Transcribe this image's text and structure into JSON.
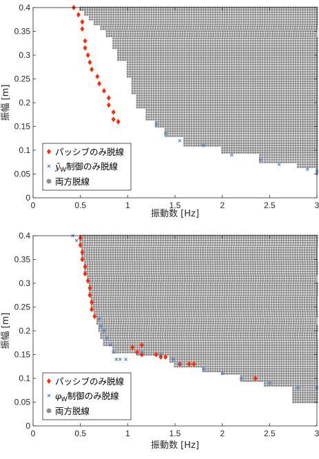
{
  "chart_data": [
    {
      "type": "scatter",
      "xlabel": "振動数 [Hz]",
      "ylabel": "振幅 [m]",
      "xlim": [
        0,
        3
      ],
      "ylim": [
        0,
        0.4
      ],
      "xticks": [
        "0",
        "0.5",
        "1",
        "1.5",
        "2",
        "2.5",
        "3"
      ],
      "yticks": [
        "0",
        "0.05",
        "0.1",
        "0.15",
        "0.2",
        "0.25",
        "0.3",
        "0.35",
        "0.4"
      ],
      "grid": false,
      "legend_position": "bottom-left",
      "legend": [
        "パッシブのみ脱線",
        "ỹ_W制御のみ脱線",
        "両方脱線"
      ],
      "markers": [
        "diamond",
        "x",
        "circle"
      ],
      "colors": [
        "#ff2a00",
        "#3b72d9",
        "#8c8c8c"
      ],
      "series": [
        {
          "name": "パッシブのみ脱線",
          "points": [
            [
              0.43,
              0.4
            ],
            [
              0.48,
              0.385
            ],
            [
              0.52,
              0.37
            ],
            [
              0.52,
              0.355
            ],
            [
              0.55,
              0.33
            ],
            [
              0.55,
              0.315
            ],
            [
              0.58,
              0.3
            ],
            [
              0.6,
              0.285
            ],
            [
              0.62,
              0.27
            ],
            [
              0.68,
              0.255
            ],
            [
              0.7,
              0.24
            ],
            [
              0.75,
              0.225
            ],
            [
              0.8,
              0.21
            ],
            [
              0.8,
              0.195
            ],
            [
              0.85,
              0.18
            ],
            [
              0.85,
              0.165
            ],
            [
              0.9,
              0.16
            ]
          ]
        },
        {
          "name": "ỹ_W制御のみ脱線",
          "points": [
            [
              1.3,
              0.155
            ],
            [
              1.4,
              0.135
            ],
            [
              1.55,
              0.12
            ],
            [
              1.8,
              0.11
            ],
            [
              2.1,
              0.09
            ],
            [
              2.4,
              0.08
            ],
            [
              2.6,
              0.07
            ],
            [
              2.9,
              0.06
            ],
            [
              3.0,
              0.055
            ]
          ]
        },
        {
          "name": "両方脱線",
          "boundary_x": [
            [
              0.4,
              0.5
            ],
            [
              0.39,
              0.55
            ],
            [
              0.38,
              0.6
            ],
            [
              0.37,
              0.65
            ],
            [
              0.36,
              0.72
            ],
            [
              0.35,
              0.78
            ],
            [
              0.33,
              0.85
            ],
            [
              0.3,
              0.9
            ],
            [
              0.27,
              1.0
            ],
            [
              0.24,
              1.05
            ],
            [
              0.2,
              1.1
            ],
            [
              0.17,
              1.2
            ],
            [
              0.155,
              1.3
            ],
            [
              0.14,
              1.4
            ],
            [
              0.12,
              1.6
            ],
            [
              0.1,
              2.0
            ],
            [
              0.08,
              2.4
            ],
            [
              0.065,
              2.8
            ],
            [
              0.055,
              3.0
            ]
          ]
        }
      ]
    },
    {
      "type": "scatter",
      "xlabel": "振動数 [Hz]",
      "ylabel": "振幅 [m]",
      "xlim": [
        0,
        3
      ],
      "ylim": [
        0,
        0.4
      ],
      "xticks": [
        "0",
        "0.5",
        "1",
        "1.5",
        "2",
        "2.5",
        "3"
      ],
      "yticks": [
        "0",
        "0.05",
        "0.1",
        "0.15",
        "0.2",
        "0.25",
        "0.3",
        "0.35",
        "0.4"
      ],
      "grid": false,
      "legend_position": "bottom-left",
      "legend": [
        "パッシブのみ脱線",
        "φ_W制御のみ脱線",
        "両方脱線"
      ],
      "markers": [
        "diamond",
        "x",
        "circle"
      ],
      "colors": [
        "#ff2a00",
        "#3b72d9",
        "#8c8c8c"
      ],
      "series": [
        {
          "name": "パッシブのみ脱線",
          "points": [
            [
              0.5,
              0.395
            ],
            [
              0.5,
              0.38
            ],
            [
              0.52,
              0.365
            ],
            [
              0.52,
              0.35
            ],
            [
              0.55,
              0.335
            ],
            [
              0.55,
              0.32
            ],
            [
              0.58,
              0.305
            ],
            [
              0.6,
              0.29
            ],
            [
              0.6,
              0.275
            ],
            [
              0.62,
              0.26
            ],
            [
              0.62,
              0.245
            ],
            [
              0.65,
              0.23
            ],
            [
              1.05,
              0.165
            ],
            [
              1.1,
              0.155
            ],
            [
              1.15,
              0.15
            ],
            [
              1.15,
              0.17
            ],
            [
              1.3,
              0.15
            ],
            [
              1.35,
              0.145
            ],
            [
              1.4,
              0.145
            ],
            [
              1.55,
              0.13
            ],
            [
              1.65,
              0.13
            ],
            [
              1.7,
              0.13
            ],
            [
              2.35,
              0.1
            ]
          ]
        },
        {
          "name": "φ_W制御のみ脱線",
          "points": [
            [
              0.42,
              0.4
            ],
            [
              0.46,
              0.39
            ],
            [
              0.7,
              0.225
            ],
            [
              0.72,
              0.21
            ],
            [
              0.75,
              0.2
            ],
            [
              0.78,
              0.185
            ],
            [
              0.82,
              0.17
            ],
            [
              0.85,
              0.155
            ],
            [
              0.88,
              0.14
            ],
            [
              0.92,
              0.14
            ],
            [
              0.98,
              0.14
            ],
            [
              1.15,
              0.155
            ],
            [
              1.35,
              0.15
            ],
            [
              1.48,
              0.14
            ],
            [
              1.55,
              0.13
            ],
            [
              1.8,
              0.12
            ],
            [
              2.0,
              0.11
            ],
            [
              2.2,
              0.1
            ],
            [
              2.5,
              0.09
            ],
            [
              2.8,
              0.08
            ],
            [
              3.0,
              0.08
            ]
          ]
        },
        {
          "name": "両方脱線",
          "boundary_x": [
            [
              0.4,
              0.5
            ],
            [
              0.385,
              0.5
            ],
            [
              0.37,
              0.52
            ],
            [
              0.355,
              0.52
            ],
            [
              0.34,
              0.55
            ],
            [
              0.325,
              0.55
            ],
            [
              0.31,
              0.58
            ],
            [
              0.295,
              0.6
            ],
            [
              0.28,
              0.6
            ],
            [
              0.265,
              0.62
            ],
            [
              0.25,
              0.62
            ],
            [
              0.235,
              0.65
            ],
            [
              0.22,
              0.68
            ],
            [
              0.205,
              0.7
            ],
            [
              0.19,
              0.72
            ],
            [
              0.175,
              0.75
            ],
            [
              0.16,
              0.85
            ],
            [
              0.15,
              1.1
            ],
            [
              0.14,
              1.45
            ],
            [
              0.13,
              1.5
            ],
            [
              0.12,
              1.8
            ],
            [
              0.11,
              2.0
            ],
            [
              0.1,
              2.2
            ],
            [
              0.09,
              2.45
            ],
            [
              0.08,
              2.75
            ]
          ]
        }
      ]
    }
  ]
}
